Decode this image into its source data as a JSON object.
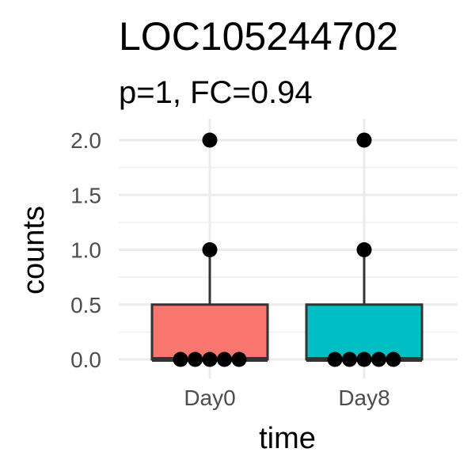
{
  "chart_data": {
    "type": "box",
    "title": "LOC105244702",
    "subtitle": "p=1, FC=0.94",
    "xlabel": "time",
    "ylabel": "counts",
    "ylim": [
      -0.15,
      2.1
    ],
    "yticks": [
      0.0,
      0.5,
      1.0,
      1.5,
      2.0
    ],
    "ytick_labels": [
      "0.0",
      "0.5",
      "1.0",
      "1.5",
      "2.0"
    ],
    "grid": true,
    "categories": [
      "Day0",
      "Day8"
    ],
    "boxes": [
      {
        "category": "Day0",
        "color": "#F8766D",
        "q1": 0,
        "median": 0,
        "q3": 0.5,
        "whisker_low": 0,
        "whisker_high": 1.0,
        "points": [
          0,
          0,
          0,
          0,
          0,
          1,
          2
        ]
      },
      {
        "category": "Day8",
        "color": "#00BFC4",
        "q1": 0,
        "median": 0,
        "q3": 0.5,
        "whisker_low": 0,
        "whisker_high": 1.0,
        "points": [
          0,
          0,
          0,
          0,
          0,
          1,
          2
        ]
      }
    ]
  }
}
